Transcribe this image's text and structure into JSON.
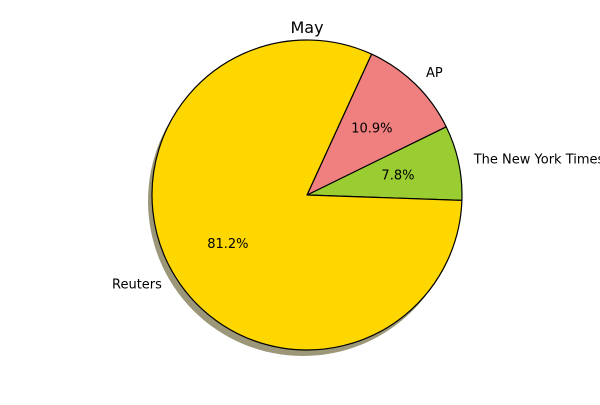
{
  "chart_data": {
    "type": "pie",
    "title": "May",
    "slices": [
      {
        "label": "The New York Times",
        "value": 7.8,
        "pct_label": "7.8%",
        "color": "#9acd32"
      },
      {
        "label": "AP",
        "value": 10.9,
        "pct_label": "10.9%",
        "color": "#f08080"
      },
      {
        "label": "Reuters",
        "value": 81.2,
        "pct_label": "81.2%",
        "color": "#ffd700"
      }
    ],
    "shadow": true,
    "edge_color": "#000000"
  }
}
